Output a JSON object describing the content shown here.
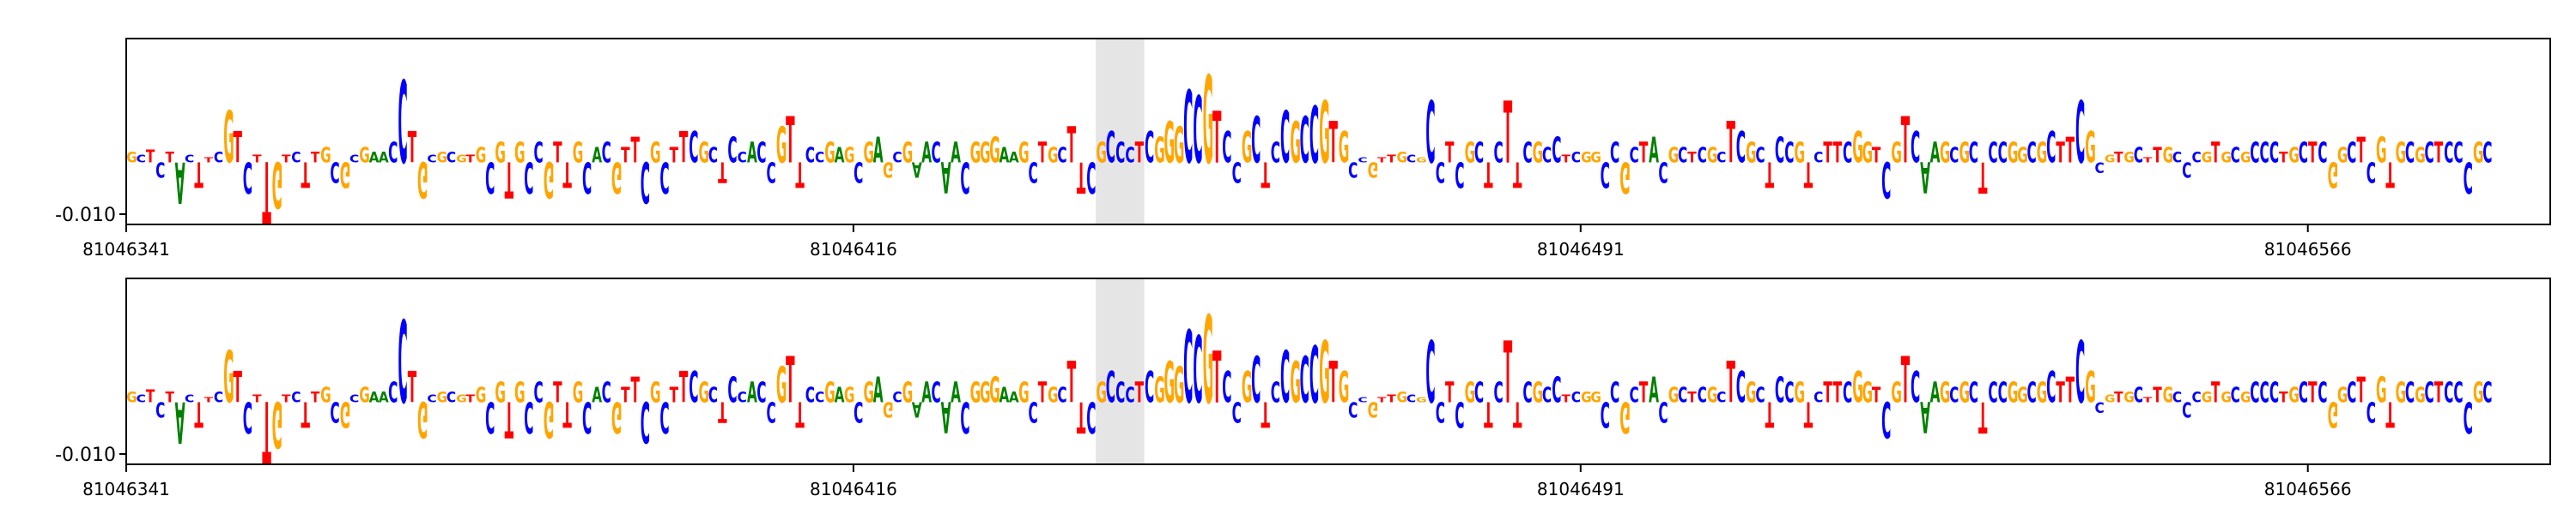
{
  "chart_data": [
    {
      "type": "sequence-logo",
      "title": "",
      "xlabel": "",
      "ylabel": "",
      "ytick_labels": [
        "-0.010"
      ],
      "ytick_values": [
        -0.01
      ],
      "xtick_labels": [
        "81046341",
        "81046416",
        "81046491",
        "81046566"
      ],
      "xtick_values": [
        81046341,
        81046416,
        81046491,
        81046566
      ],
      "x_range": [
        81046341,
        81046591
      ],
      "highlight_range": [
        81046441,
        81046446
      ],
      "sequence": "GCTCTACTTCGTCTTGTCTTGCGCGAACCTGCGCGTGCGTGCCGTTGCACGTTCGCTTCGCTCCACCGTTCCGAGCGAGCGAACAACGGGAAGCTGCTTCGCCCTCGGGCCGTCCGCTCCGCCGTGCCGTTGCGCCTCGCTCTTCGCCTCGGCCGCTACGCTCGCTCGCTCCGTCTTCGGTCGTCAAGCGCTCCGGCGCTTCGCGTGCTTGCCCGTGCGCCCTGCTCGGCTCGTGCGCTCCCGC",
      "series": [
        {
          "name": "",
          "values": [
            0.002,
            0.0015,
            0.0025,
            -0.003,
            0.002,
            -0.008,
            0.0015,
            -0.005,
            0.001,
            0.002,
            0.01,
            0.006,
            -0.006,
            0.0015,
            -0.012,
            -0.009,
            0.0015,
            0.002,
            -0.005,
            0.002,
            0.003,
            -0.004,
            -0.005,
            0.0015,
            0.003,
            0.002,
            0.002,
            0.004,
            0.016,
            0.006,
            -0.007,
            0.0015,
            0.002,
            0.002,
            0.0015,
            0.0015,
            0.003,
            -0.006,
            0.004,
            -0.007,
            0.004,
            -0.006,
            0.004,
            -0.007,
            0.004,
            -0.005,
            0.004,
            -0.006,
            0.003,
            0.004,
            -0.006,
            0.003,
            0.005,
            -0.008,
            0.004,
            -0.006,
            0.003,
            0.006,
            0.006,
            0.004,
            0.003,
            -0.004,
            0.005,
            0.002,
            0.004,
            0.004,
            -0.004,
            0.007,
            0.009,
            -0.005,
            0.003,
            0.002,
            0.004,
            0.003,
            0.003,
            -0.004,
            0.004,
            0.005,
            -0.003,
            0.002,
            0.004,
            -0.003,
            0.004,
            0.004,
            -0.006,
            0.004,
            -0.006,
            0.004,
            0.004,
            0.005,
            0.003,
            0.002,
            0.004,
            -0.004,
            0.004,
            0.003,
            0.003,
            0.007,
            -0.006,
            -0.006,
            0.004,
            0.006,
            0.004,
            0.003,
            0.004,
            0.006,
            0.005,
            0.008,
            0.007,
            0.014,
            0.013,
            0.017,
            0.01,
            0.006,
            -0.004,
            0.006,
            0.009,
            -0.005,
            0.004,
            0.01,
            0.008,
            0.009,
            0.011,
            0.012,
            0.008,
            0.006,
            -0.003,
            0.001,
            -0.003,
            0.001,
            0.0015,
            0.002,
            0.0015,
            0.001,
            0.012,
            -0.004,
            0.004,
            -0.005,
            0.004,
            0.004,
            -0.005,
            0.004,
            0.012,
            -0.005,
            0.004,
            0.004,
            0.003,
            0.005,
            0.0015,
            0.002,
            0.002,
            0.002,
            -0.005,
            0.004,
            -0.006,
            0.003,
            0.004,
            0.005,
            -0.004,
            0.003,
            0.003,
            0.002,
            0.003,
            0.003,
            0.002,
            0.008,
            0.006,
            0.004,
            0.003,
            -0.005,
            0.005,
            0.004,
            0.004,
            -0.005,
            0.002,
            0.004,
            0.004,
            0.004,
            0.006,
            0.004,
            0.003,
            -0.007,
            0.004,
            0.009,
            0.006,
            -0.006,
            0.004,
            0.004,
            0.003,
            0.004,
            0.004,
            -0.006,
            0.004,
            0.004,
            0.004,
            0.003,
            0.004,
            0.004,
            0.006,
            0.004,
            0.005,
            0.012,
            0.006,
            -0.002,
            0.0015,
            0.002,
            0.002,
            0.003,
            0.001,
            0.003,
            0.003,
            0.002,
            -0.003,
            0.002,
            0.002,
            0.004,
            0.002,
            0.003,
            0.002,
            0.004,
            0.004,
            0.004,
            0.002,
            0.003,
            0.004,
            0.004,
            0.004,
            -0.005,
            0.003,
            0.004,
            0.005,
            -0.004,
            0.005,
            -0.005,
            0.004,
            0.004,
            0.003,
            0.004,
            0.004,
            0.004,
            0.004,
            -0.006,
            0.004,
            0.004,
            0.004,
            0.003,
            0.003,
            0.004,
            0.004,
            0.005,
            0.006,
            0.004,
            0.005,
            0.003
          ]
        }
      ],
      "ylim": [
        -0.012,
        0.024
      ],
      "grid": false,
      "legend": "none",
      "colors": {
        "A": "#008000",
        "C": "#0000ff",
        "G": "#ffa500",
        "T": "#ff0000",
        "highlight": "#e5e5e5",
        "axis": "#000000"
      }
    },
    {
      "type": "sequence-logo",
      "title": "",
      "xlabel": "",
      "ylabel": "",
      "ytick_labels": [
        "-0.010"
      ],
      "ytick_values": [
        -0.01
      ],
      "xtick_labels": [
        "81046341",
        "81046416",
        "81046491",
        "81046566"
      ],
      "xtick_values": [
        81046341,
        81046416,
        81046491,
        81046566
      ],
      "x_range": [
        81046341,
        81046591
      ],
      "highlight_range": [
        81046441,
        81046446
      ],
      "sequence": "GCTCTACTTCGTCTTGTCTTGCGCGAACCTGCGCGTGCGTGCCGTTGCACGTTCGCTTCGCTCCACCGTTCCGAGCGAGCGAACAACGGGAAGCTGCTTCGCCCTCGGGCCGTCCGCTCCGCCGTGCCGTTGCGCCTCGCTCTTCGCCTCGGCCGCTACGCTCGCTCGCTCCGTCTTCGGTCGTCAAGCGCTCCGGCGCTTCGCGTGCTTGCCCGTGCGCCCTGCTCGGCTCGTGCGCTCCCGC",
      "series": [
        {
          "name": "",
          "values": [
            0.002,
            0.0015,
            0.0025,
            -0.003,
            0.002,
            -0.008,
            0.0015,
            -0.005,
            0.001,
            0.002,
            0.01,
            0.006,
            -0.006,
            0.0015,
            -0.012,
            -0.009,
            0.0015,
            0.002,
            -0.005,
            0.002,
            0.003,
            -0.004,
            -0.005,
            0.0015,
            0.003,
            0.002,
            0.002,
            0.004,
            0.016,
            0.006,
            -0.007,
            0.0015,
            0.002,
            0.002,
            0.0015,
            0.0015,
            0.003,
            -0.006,
            0.004,
            -0.007,
            0.004,
            -0.006,
            0.004,
            -0.007,
            0.004,
            -0.005,
            0.004,
            -0.006,
            0.003,
            0.004,
            -0.006,
            0.003,
            0.005,
            -0.008,
            0.004,
            -0.006,
            0.003,
            0.006,
            0.006,
            0.004,
            0.003,
            -0.004,
            0.005,
            0.002,
            0.004,
            0.004,
            -0.004,
            0.007,
            0.009,
            -0.005,
            0.003,
            0.002,
            0.004,
            0.003,
            0.003,
            -0.004,
            0.004,
            0.005,
            -0.003,
            0.002,
            0.004,
            -0.003,
            0.004,
            0.004,
            -0.006,
            0.004,
            -0.006,
            0.004,
            0.004,
            0.005,
            0.003,
            0.002,
            0.004,
            -0.004,
            0.004,
            0.003,
            0.003,
            0.008,
            -0.006,
            -0.006,
            0.004,
            0.006,
            0.004,
            0.003,
            0.004,
            0.006,
            0.005,
            0.008,
            0.007,
            0.014,
            0.013,
            0.017,
            0.01,
            0.006,
            -0.004,
            0.006,
            0.009,
            -0.005,
            0.004,
            0.01,
            0.008,
            0.009,
            0.011,
            0.012,
            0.008,
            0.006,
            -0.003,
            0.001,
            -0.003,
            0.001,
            0.0015,
            0.002,
            0.0015,
            0.001,
            0.012,
            -0.004,
            0.004,
            -0.005,
            0.004,
            0.004,
            -0.005,
            0.004,
            0.012,
            -0.005,
            0.004,
            0.004,
            0.003,
            0.005,
            0.0015,
            0.002,
            0.002,
            0.002,
            -0.005,
            0.004,
            -0.006,
            0.003,
            0.004,
            0.005,
            -0.004,
            0.003,
            0.003,
            0.002,
            0.003,
            0.003,
            0.002,
            0.008,
            0.006,
            0.004,
            0.003,
            -0.005,
            0.005,
            0.004,
            0.004,
            -0.005,
            0.002,
            0.004,
            0.004,
            0.004,
            0.006,
            0.004,
            0.003,
            -0.007,
            0.004,
            0.009,
            0.006,
            -0.006,
            0.004,
            0.004,
            0.003,
            0.004,
            0.004,
            -0.006,
            0.004,
            0.004,
            0.004,
            0.003,
            0.004,
            0.004,
            0.006,
            0.004,
            0.005,
            0.012,
            0.006,
            -0.002,
            0.0015,
            0.002,
            0.002,
            0.003,
            0.001,
            0.003,
            0.003,
            0.002,
            -0.003,
            0.002,
            0.002,
            0.004,
            0.002,
            0.003,
            0.002,
            0.004,
            0.004,
            0.004,
            0.002,
            0.003,
            0.004,
            0.004,
            0.004,
            -0.005,
            0.003,
            0.004,
            0.005,
            -0.004,
            0.005,
            -0.005,
            0.004,
            0.004,
            0.003,
            0.004,
            0.004,
            0.004,
            0.004,
            -0.006,
            0.004,
            0.004,
            0.004,
            0.003,
            0.003,
            0.004,
            0.004,
            0.005,
            0.006,
            0.004,
            0.005,
            0.003
          ]
        }
      ],
      "ylim": [
        -0.012,
        0.024
      ],
      "grid": false,
      "legend": "none",
      "colors": {
        "A": "#008000",
        "C": "#0000ff",
        "G": "#ffa500",
        "T": "#ff0000",
        "highlight": "#e5e5e5",
        "axis": "#000000"
      }
    }
  ]
}
